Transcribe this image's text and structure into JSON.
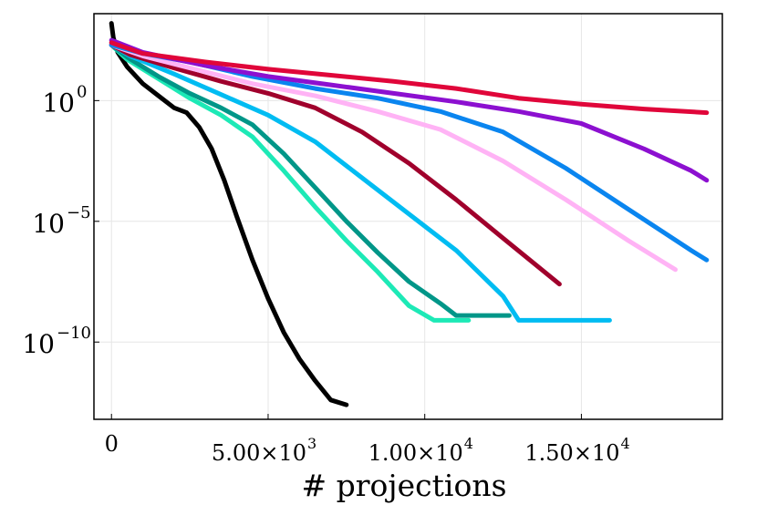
{
  "chart_data": {
    "type": "line",
    "title": "",
    "xlabel": "# projections",
    "ylabel": "",
    "y_scale": "log10",
    "xlim": [
      -560,
      19500
    ],
    "ylim_log10": [
      -13.2,
      3.6
    ],
    "grid": true,
    "legend": "none",
    "x_ticks": [
      {
        "value": 0,
        "mantissa": "0",
        "exponent": ""
      },
      {
        "value": 5000,
        "mantissa": "5.00×10",
        "exponent": "3"
      },
      {
        "value": 10000,
        "mantissa": "1.00×10",
        "exponent": "4"
      },
      {
        "value": 15000,
        "mantissa": "1.50×10",
        "exponent": "4"
      }
    ],
    "y_ticks": [
      {
        "log10": 0,
        "base": "10",
        "exponent": "0"
      },
      {
        "log10": -5,
        "base": "10",
        "exponent": "−5"
      },
      {
        "log10": -10,
        "base": "10",
        "exponent": "−10"
      }
    ],
    "series": [
      {
        "name": "black",
        "color": "#000000",
        "points": [
          [
            0,
            3.2
          ],
          [
            60,
            2.6
          ],
          [
            200,
            2.0
          ],
          [
            500,
            1.4
          ],
          [
            1000,
            0.7
          ],
          [
            1500,
            0.2
          ],
          [
            2000,
            -0.3
          ],
          [
            2400,
            -0.5
          ],
          [
            2800,
            -1.1
          ],
          [
            3200,
            -2.0
          ],
          [
            3600,
            -3.3
          ],
          [
            4000,
            -4.8
          ],
          [
            4500,
            -6.6
          ],
          [
            5000,
            -8.2
          ],
          [
            5500,
            -9.6
          ],
          [
            6000,
            -10.7
          ],
          [
            6500,
            -11.6
          ],
          [
            7000,
            -12.4
          ],
          [
            7500,
            -12.6
          ]
        ]
      },
      {
        "name": "aquamarine",
        "color": "#1de9b6",
        "points": [
          [
            0,
            2.3
          ],
          [
            500,
            1.7
          ],
          [
            1500,
            0.9
          ],
          [
            2500,
            0.1
          ],
          [
            3500,
            -0.6
          ],
          [
            4500,
            -1.5
          ],
          [
            5500,
            -2.9
          ],
          [
            6500,
            -4.4
          ],
          [
            7500,
            -5.8
          ],
          [
            8500,
            -7.1
          ],
          [
            9500,
            -8.5
          ],
          [
            10300,
            -9.1
          ],
          [
            11000,
            -9.1
          ],
          [
            11400,
            -9.1
          ]
        ]
      },
      {
        "name": "teal",
        "color": "#009688",
        "points": [
          [
            0,
            2.3
          ],
          [
            500,
            1.8
          ],
          [
            1500,
            1.0
          ],
          [
            2500,
            0.3
          ],
          [
            3500,
            -0.3
          ],
          [
            4500,
            -1.0
          ],
          [
            5500,
            -2.2
          ],
          [
            6500,
            -3.6
          ],
          [
            7500,
            -5.0
          ],
          [
            8500,
            -6.3
          ],
          [
            9500,
            -7.5
          ],
          [
            10500,
            -8.4
          ],
          [
            11000,
            -8.9
          ],
          [
            11600,
            -8.9
          ],
          [
            12700,
            -8.9
          ]
        ]
      },
      {
        "name": "sky-blue",
        "color": "#00bcf2",
        "points": [
          [
            0,
            2.3
          ],
          [
            600,
            1.85
          ],
          [
            2000,
            1.1
          ],
          [
            3500,
            0.25
          ],
          [
            5000,
            -0.6
          ],
          [
            6500,
            -1.7
          ],
          [
            8000,
            -3.2
          ],
          [
            9500,
            -4.7
          ],
          [
            11000,
            -6.2
          ],
          [
            12500,
            -8.1
          ],
          [
            13000,
            -9.1
          ],
          [
            14500,
            -9.1
          ],
          [
            15900,
            -9.1
          ]
        ]
      },
      {
        "name": "crimson",
        "color": "#a0002c",
        "points": [
          [
            0,
            2.3
          ],
          [
            600,
            1.9
          ],
          [
            2000,
            1.35
          ],
          [
            3500,
            0.8
          ],
          [
            5000,
            0.3
          ],
          [
            6500,
            -0.3
          ],
          [
            8000,
            -1.3
          ],
          [
            9500,
            -2.6
          ],
          [
            11000,
            -4.1
          ],
          [
            12500,
            -5.7
          ],
          [
            14300,
            -7.6
          ]
        ]
      },
      {
        "name": "pink",
        "color": "#ffb3f5",
        "points": [
          [
            0,
            2.3
          ],
          [
            1000,
            1.85
          ],
          [
            2500,
            1.35
          ],
          [
            4500,
            0.7
          ],
          [
            6500,
            0.2
          ],
          [
            8500,
            -0.45
          ],
          [
            10500,
            -1.2
          ],
          [
            12500,
            -2.5
          ],
          [
            14500,
            -4.1
          ],
          [
            16500,
            -5.8
          ],
          [
            18000,
            -7.0
          ]
        ]
      },
      {
        "name": "azure",
        "color": "#0a85ef",
        "points": [
          [
            0,
            2.3
          ],
          [
            1000,
            1.95
          ],
          [
            2500,
            1.6
          ],
          [
            4500,
            1.0
          ],
          [
            6500,
            0.5
          ],
          [
            8500,
            0.1
          ],
          [
            10500,
            -0.45
          ],
          [
            12500,
            -1.3
          ],
          [
            14500,
            -2.8
          ],
          [
            16500,
            -4.5
          ],
          [
            18500,
            -6.2
          ],
          [
            19000,
            -6.6
          ]
        ]
      },
      {
        "name": "purple",
        "color": "#8c10d0",
        "points": [
          [
            0,
            2.5
          ],
          [
            1000,
            2.0
          ],
          [
            3000,
            1.45
          ],
          [
            5000,
            1.0
          ],
          [
            7000,
            0.65
          ],
          [
            9000,
            0.3
          ],
          [
            11000,
            -0.05
          ],
          [
            13000,
            -0.45
          ],
          [
            15000,
            -0.95
          ],
          [
            17000,
            -2.0
          ],
          [
            18500,
            -2.9
          ],
          [
            19000,
            -3.3
          ]
        ]
      },
      {
        "name": "red",
        "color": "#e0063a",
        "points": [
          [
            0,
            2.4
          ],
          [
            1000,
            1.95
          ],
          [
            3000,
            1.6
          ],
          [
            5000,
            1.3
          ],
          [
            7000,
            1.05
          ],
          [
            9000,
            0.8
          ],
          [
            11000,
            0.5
          ],
          [
            13000,
            0.1
          ],
          [
            15000,
            -0.15
          ],
          [
            17000,
            -0.35
          ],
          [
            19000,
            -0.5
          ]
        ]
      }
    ]
  }
}
